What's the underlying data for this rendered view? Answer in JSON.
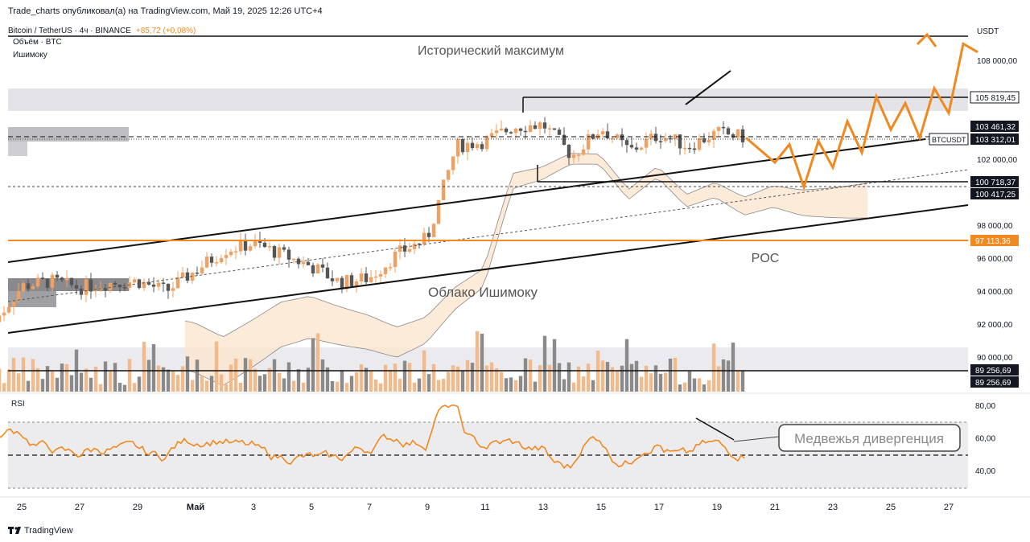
{
  "header": {
    "published_line": "Trade_charts опубликовал(а) на TradingView.com, Май 19, 2025 12:26 UTC+4",
    "symbol_line": "Bitcoin / TetherUS · 4ч · BINANCE",
    "change_text": "+85,72 (+0,08%)",
    "volume_label": "Объём · BTC",
    "ichimoku_label": "Ишимоку",
    "currency": "USDT"
  },
  "footer": {
    "logo_text": "TradingView",
    "rsi_label": "RSI"
  },
  "colors": {
    "accent_orange": "#f0891f",
    "bull_candle": "#f0a060",
    "bear_candle": "#555555",
    "cloud_fill": "#fde6cf",
    "label_dark": "#131722"
  },
  "chart_data": [
    {
      "type": "candlestick",
      "title": "",
      "symbol": "BTCUSDT",
      "timeframe": "4ч",
      "x_tick_labels": [
        "25",
        "27",
        "29",
        "Май",
        "3",
        "5",
        "7",
        "9",
        "11",
        "13",
        "15",
        "17",
        "19",
        "21",
        "23",
        "25",
        "27"
      ],
      "y_tick_labels": [
        "108 000,00",
        "102 000,00",
        "98 000,00",
        "96 000,00",
        "94 000,00",
        "92 000,00",
        "90 000,00"
      ],
      "ylim": [
        88800,
        109300
      ],
      "price_levels": [
        {
          "name": "historic-high-level",
          "value": "105 819,45"
        },
        {
          "name": "resistance-level",
          "value": "103 461,32"
        },
        {
          "name": "last-price",
          "value": "103 312,01",
          "label": "BTCUSDT"
        },
        {
          "name": "support-level-1",
          "value": "100 718,37"
        },
        {
          "name": "support-level-2",
          "value": "100 417,25"
        },
        {
          "name": "poc-level",
          "value": "97 113,36"
        },
        {
          "name": "low-level-1",
          "value": "89 256,69"
        },
        {
          "name": "low-level-2",
          "value": "89 256,69"
        }
      ],
      "price_path_approx": [
        [
          "Apr 24",
          92000
        ],
        [
          "Apr 25",
          94300
        ],
        [
          "Apr 26",
          94600
        ],
        [
          "Apr 27",
          94200
        ],
        [
          "Apr 28",
          94500
        ],
        [
          "Apr 29",
          94600
        ],
        [
          "Apr 30",
          94000
        ],
        [
          "May 1",
          96500
        ],
        [
          "May 2",
          96900
        ],
        [
          "May 3",
          96200
        ],
        [
          "May 4",
          95500
        ],
        [
          "May 5",
          94500
        ],
        [
          "May 6",
          94800
        ],
        [
          "May 7",
          96300
        ],
        [
          "May 8",
          97200
        ],
        [
          "May 9",
          102800
        ],
        [
          "May 10",
          103100
        ],
        [
          "May 11",
          104000
        ],
        [
          "May 12",
          104100
        ],
        [
          "May 13",
          102200
        ],
        [
          "May 14",
          103900
        ],
        [
          "May 15",
          102500
        ],
        [
          "May 16",
          103500
        ],
        [
          "May 17",
          102800
        ],
        [
          "May 18",
          103600
        ],
        [
          "May 19",
          103312
        ]
      ],
      "projection_path_approx": [
        [
          "May 19",
          103300
        ],
        [
          "May 20",
          101800
        ],
        [
          "May 20.5",
          102900
        ],
        [
          "May 21",
          100300
        ],
        [
          "May 21.5",
          103100
        ],
        [
          "May 22",
          101500
        ],
        [
          "May 22.5",
          104300
        ],
        [
          "May 23",
          102400
        ],
        [
          "May 23.5",
          105800
        ],
        [
          "May 24",
          103800
        ],
        [
          "May 24.5",
          105400
        ],
        [
          "May 25",
          103300
        ],
        [
          "May 25.5",
          106300
        ],
        [
          "May 26",
          104800
        ],
        [
          "May 26.5",
          109000
        ],
        [
          "May 27",
          108500
        ]
      ],
      "annotations": [
        {
          "name": "historic-high-annotation",
          "text": "Исторический максимум"
        },
        {
          "name": "ichimoku-cloud-annotation",
          "text": "Облако Ишимоку"
        },
        {
          "name": "poc-annotation",
          "text": "POC"
        }
      ]
    },
    {
      "type": "line",
      "title": "RSI",
      "y_tick_labels": [
        "80,00",
        "60,00",
        "40,00"
      ],
      "ylim": [
        28,
        82
      ],
      "levels": [
        70,
        50,
        30
      ],
      "annotations": [
        {
          "name": "bearish-divergence-annotation",
          "text": "Медвежья дивергенция"
        }
      ]
    }
  ]
}
